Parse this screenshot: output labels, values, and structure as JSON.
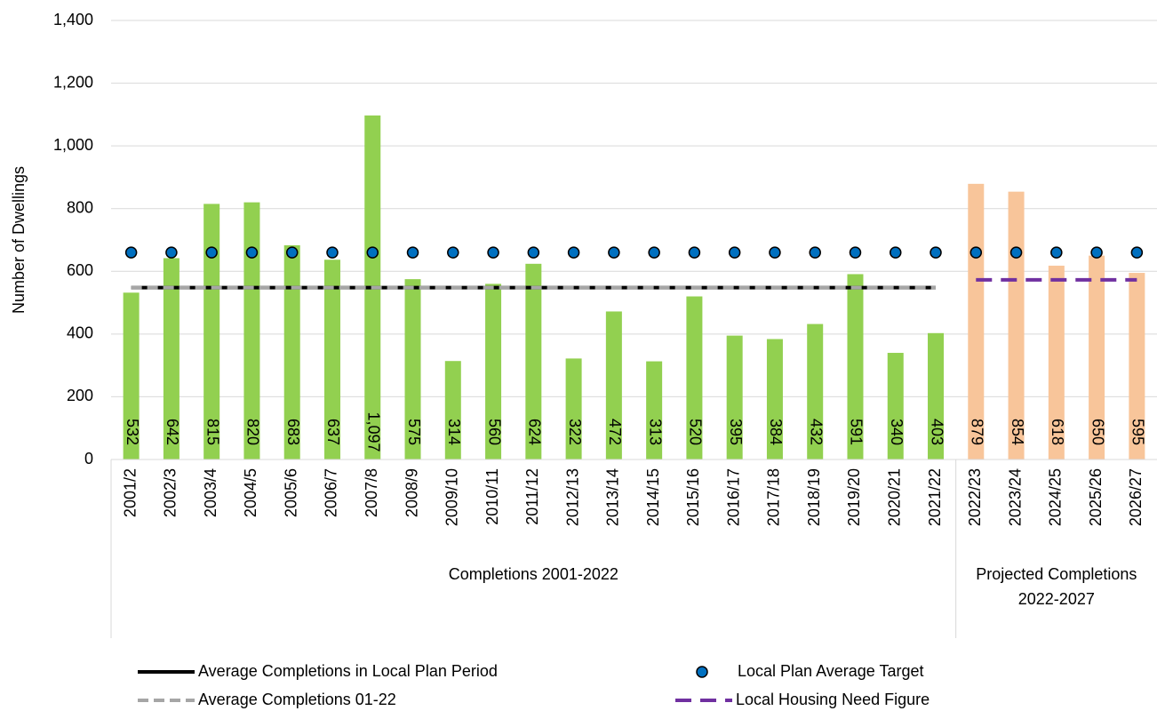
{
  "chart_data": {
    "type": "bar",
    "ylabel": "Number of Dwellings",
    "ylim": [
      0,
      1400
    ],
    "yticks": [
      0,
      200,
      400,
      600,
      800,
      {
        "value": 1000,
        "label": "1,000"
      },
      {
        "value": 1200,
        "label": "1,200"
      },
      {
        "value": 1400,
        "label": "1,400"
      }
    ],
    "groups": [
      {
        "label": "Completions 2001-2022",
        "color": "#92d050",
        "categories": [
          "2001/2",
          "2002/3",
          "2003/4",
          "2004/5",
          "2005/6",
          "2006/7",
          "2007/8",
          "2008/9",
          "2009/10",
          "2010/11",
          "2011/12",
          "2012/13",
          "2013/14",
          "2014/15",
          "2015/16",
          "2016/17",
          "2017/18",
          "2018/19",
          "2019/20",
          "2020/21",
          "2021/22"
        ],
        "values": [
          532,
          642,
          815,
          820,
          683,
          637,
          1097,
          575,
          314,
          560,
          624,
          322,
          472,
          313,
          520,
          395,
          384,
          432,
          591,
          340,
          403
        ],
        "value_labels": [
          "532",
          "642",
          "815",
          "820",
          "683",
          "637",
          "1,097",
          "575",
          "314",
          "560",
          "624",
          "322",
          "472",
          "313",
          "520",
          "395",
          "384",
          "432",
          "591",
          "340",
          "403"
        ]
      },
      {
        "label": "Projected Completions 2022-2027",
        "color": "#f8c59a",
        "categories": [
          "2022/23",
          "2023/24",
          "2024/25",
          "2025/26",
          "2026/27"
        ],
        "values": [
          879,
          854,
          618,
          650,
          595
        ],
        "value_labels": [
          "879",
          "854",
          "618",
          "650",
          "595"
        ]
      }
    ],
    "series": [
      {
        "name": "Average Completions in Local Plan Period",
        "kind": "solid",
        "color": "#000000",
        "values": [
          548,
          548,
          548,
          548,
          548,
          548,
          548,
          548,
          548,
          548,
          548,
          548,
          548,
          548,
          548,
          548,
          548,
          548,
          548,
          548,
          548,
          null,
          null,
          null,
          null,
          null
        ]
      },
      {
        "name": "Local Plan Average Target",
        "kind": "marker",
        "color": "#0070c0",
        "values": [
          660,
          660,
          660,
          660,
          660,
          660,
          660,
          660,
          660,
          660,
          660,
          660,
          660,
          660,
          660,
          660,
          660,
          660,
          660,
          660,
          660,
          660,
          660,
          660,
          660,
          660
        ]
      },
      {
        "name": "Average Completions 01-22",
        "kind": "dashed",
        "color": "#a6a6a6",
        "values": [
          548,
          548,
          548,
          548,
          548,
          548,
          548,
          548,
          548,
          548,
          548,
          548,
          548,
          548,
          548,
          548,
          548,
          548,
          548,
          548,
          548,
          null,
          null,
          null,
          null,
          null
        ]
      },
      {
        "name": "Local Housing Need Figure",
        "kind": "dashed",
        "color": "#7030a0",
        "values": [
          null,
          null,
          null,
          null,
          null,
          null,
          null,
          null,
          null,
          null,
          null,
          null,
          null,
          null,
          null,
          null,
          null,
          null,
          null,
          null,
          null,
          573,
          573,
          573,
          573,
          573
        ]
      }
    ]
  }
}
